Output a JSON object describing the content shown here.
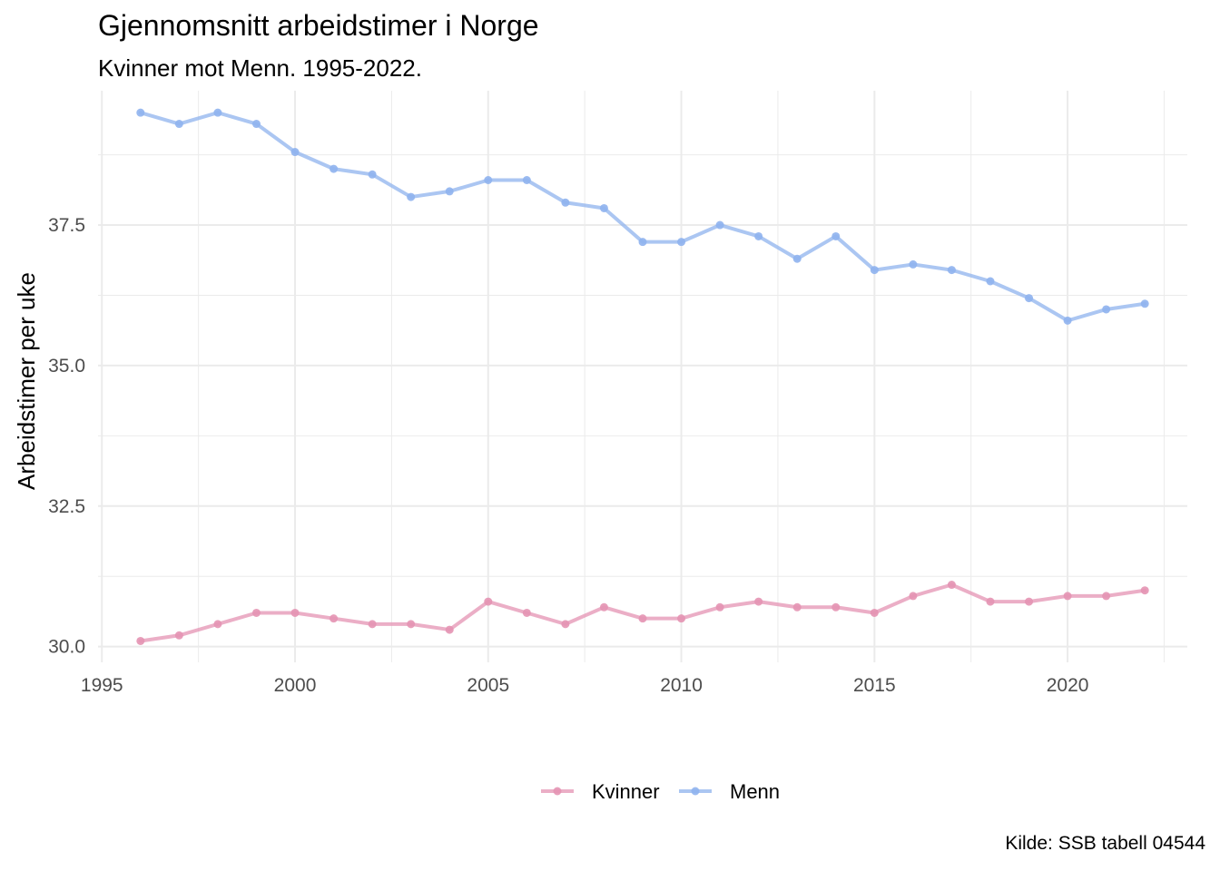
{
  "header": {
    "title": "Gjennomsnitt arbeidstimer i Norge",
    "subtitle": "Kvinner mot Menn. 1995-2022."
  },
  "caption": "Kilde: SSB tabell 04544",
  "colors": {
    "kvinner": "#E493B3",
    "menn": "#8FB3EE",
    "grid": "#EBEBEB",
    "tick_text": "#4D4D4D"
  },
  "chart_data": {
    "type": "line",
    "title": "Gjennomsnitt arbeidstimer i Norge",
    "subtitle": "Kvinner mot Menn. 1995-2022.",
    "xlabel": "",
    "ylabel": "Arbeidstimer per uke",
    "x": [
      1996,
      1997,
      1998,
      1999,
      2000,
      2001,
      2002,
      2003,
      2004,
      2005,
      2006,
      2007,
      2008,
      2009,
      2010,
      2011,
      2012,
      2013,
      2014,
      2015,
      2016,
      2017,
      2018,
      2019,
      2020,
      2021,
      2022
    ],
    "series": [
      {
        "name": "Kvinner",
        "color": "#E493B3",
        "values": [
          30.1,
          30.2,
          30.4,
          30.6,
          30.6,
          30.5,
          30.4,
          30.4,
          30.3,
          30.8,
          30.6,
          30.4,
          30.7,
          30.5,
          30.5,
          30.7,
          30.8,
          30.7,
          30.7,
          30.6,
          30.9,
          31.1,
          30.8,
          30.8,
          30.9,
          30.9,
          31.0
        ]
      },
      {
        "name": "Menn",
        "color": "#8FB3EE",
        "values": [
          39.5,
          39.3,
          39.5,
          39.3,
          38.8,
          38.5,
          38.4,
          38.0,
          38.1,
          38.3,
          38.3,
          37.9,
          37.8,
          37.2,
          37.2,
          37.5,
          37.3,
          36.9,
          37.3,
          36.7,
          36.8,
          36.7,
          36.5,
          36.2,
          35.8,
          36.0,
          36.1
        ]
      }
    ],
    "xlim": [
      1994.9,
      2023.1
    ],
    "ylim": [
      29.72,
      39.89
    ],
    "x_ticks": [
      1995,
      2000,
      2005,
      2010,
      2015,
      2020
    ],
    "x_tick_labels": [
      "1995",
      "2000",
      "2005",
      "2010",
      "2015",
      "2020"
    ],
    "y_ticks": [
      30.0,
      32.5,
      35.0,
      37.5
    ],
    "y_tick_labels": [
      "30.0",
      "32.5",
      "35.0",
      "37.5"
    ],
    "grid": true,
    "legend_position": "bottom"
  }
}
